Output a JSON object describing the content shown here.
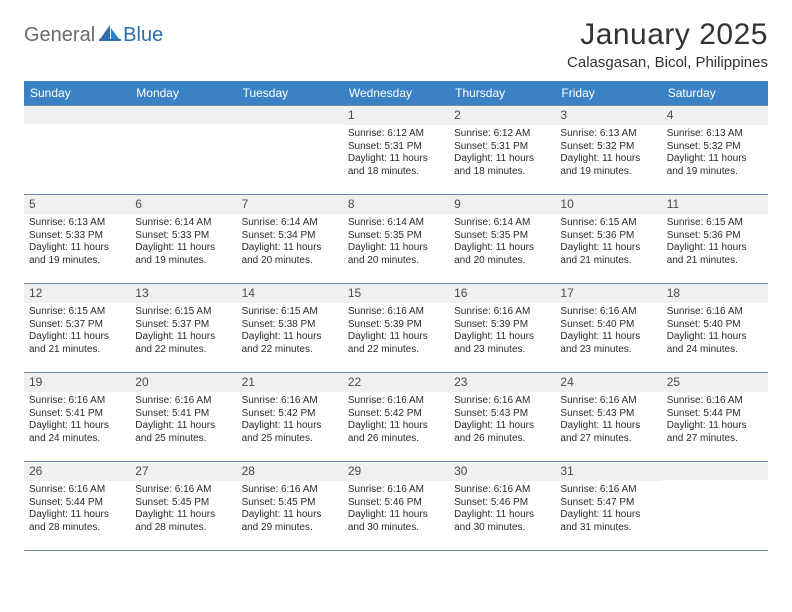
{
  "logo": {
    "general": "General",
    "blue": "Blue"
  },
  "title": "January 2025",
  "location": "Calasgasan, Bicol, Philippines",
  "colors": {
    "header_bg": "#3a82c4",
    "header_text": "#ffffff",
    "daynum_bg": "#eef0f2",
    "border": "#6d8aa8",
    "logo_gray": "#6b6b6b",
    "logo_blue": "#2b6fb0"
  },
  "weekdays": [
    "Sunday",
    "Monday",
    "Tuesday",
    "Wednesday",
    "Thursday",
    "Friday",
    "Saturday"
  ],
  "weeks": [
    [
      null,
      null,
      null,
      {
        "d": "1",
        "sr": "6:12 AM",
        "ss": "5:31 PM",
        "dl": "11 hours and 18 minutes."
      },
      {
        "d": "2",
        "sr": "6:12 AM",
        "ss": "5:31 PM",
        "dl": "11 hours and 18 minutes."
      },
      {
        "d": "3",
        "sr": "6:13 AM",
        "ss": "5:32 PM",
        "dl": "11 hours and 19 minutes."
      },
      {
        "d": "4",
        "sr": "6:13 AM",
        "ss": "5:32 PM",
        "dl": "11 hours and 19 minutes."
      }
    ],
    [
      {
        "d": "5",
        "sr": "6:13 AM",
        "ss": "5:33 PM",
        "dl": "11 hours and 19 minutes."
      },
      {
        "d": "6",
        "sr": "6:14 AM",
        "ss": "5:33 PM",
        "dl": "11 hours and 19 minutes."
      },
      {
        "d": "7",
        "sr": "6:14 AM",
        "ss": "5:34 PM",
        "dl": "11 hours and 20 minutes."
      },
      {
        "d": "8",
        "sr": "6:14 AM",
        "ss": "5:35 PM",
        "dl": "11 hours and 20 minutes."
      },
      {
        "d": "9",
        "sr": "6:14 AM",
        "ss": "5:35 PM",
        "dl": "11 hours and 20 minutes."
      },
      {
        "d": "10",
        "sr": "6:15 AM",
        "ss": "5:36 PM",
        "dl": "11 hours and 21 minutes."
      },
      {
        "d": "11",
        "sr": "6:15 AM",
        "ss": "5:36 PM",
        "dl": "11 hours and 21 minutes."
      }
    ],
    [
      {
        "d": "12",
        "sr": "6:15 AM",
        "ss": "5:37 PM",
        "dl": "11 hours and 21 minutes."
      },
      {
        "d": "13",
        "sr": "6:15 AM",
        "ss": "5:37 PM",
        "dl": "11 hours and 22 minutes."
      },
      {
        "d": "14",
        "sr": "6:15 AM",
        "ss": "5:38 PM",
        "dl": "11 hours and 22 minutes."
      },
      {
        "d": "15",
        "sr": "6:16 AM",
        "ss": "5:39 PM",
        "dl": "11 hours and 22 minutes."
      },
      {
        "d": "16",
        "sr": "6:16 AM",
        "ss": "5:39 PM",
        "dl": "11 hours and 23 minutes."
      },
      {
        "d": "17",
        "sr": "6:16 AM",
        "ss": "5:40 PM",
        "dl": "11 hours and 23 minutes."
      },
      {
        "d": "18",
        "sr": "6:16 AM",
        "ss": "5:40 PM",
        "dl": "11 hours and 24 minutes."
      }
    ],
    [
      {
        "d": "19",
        "sr": "6:16 AM",
        "ss": "5:41 PM",
        "dl": "11 hours and 24 minutes."
      },
      {
        "d": "20",
        "sr": "6:16 AM",
        "ss": "5:41 PM",
        "dl": "11 hours and 25 minutes."
      },
      {
        "d": "21",
        "sr": "6:16 AM",
        "ss": "5:42 PM",
        "dl": "11 hours and 25 minutes."
      },
      {
        "d": "22",
        "sr": "6:16 AM",
        "ss": "5:42 PM",
        "dl": "11 hours and 26 minutes."
      },
      {
        "d": "23",
        "sr": "6:16 AM",
        "ss": "5:43 PM",
        "dl": "11 hours and 26 minutes."
      },
      {
        "d": "24",
        "sr": "6:16 AM",
        "ss": "5:43 PM",
        "dl": "11 hours and 27 minutes."
      },
      {
        "d": "25",
        "sr": "6:16 AM",
        "ss": "5:44 PM",
        "dl": "11 hours and 27 minutes."
      }
    ],
    [
      {
        "d": "26",
        "sr": "6:16 AM",
        "ss": "5:44 PM",
        "dl": "11 hours and 28 minutes."
      },
      {
        "d": "27",
        "sr": "6:16 AM",
        "ss": "5:45 PM",
        "dl": "11 hours and 28 minutes."
      },
      {
        "d": "28",
        "sr": "6:16 AM",
        "ss": "5:45 PM",
        "dl": "11 hours and 29 minutes."
      },
      {
        "d": "29",
        "sr": "6:16 AM",
        "ss": "5:46 PM",
        "dl": "11 hours and 30 minutes."
      },
      {
        "d": "30",
        "sr": "6:16 AM",
        "ss": "5:46 PM",
        "dl": "11 hours and 30 minutes."
      },
      {
        "d": "31",
        "sr": "6:16 AM",
        "ss": "5:47 PM",
        "dl": "11 hours and 31 minutes."
      },
      null
    ]
  ],
  "labels": {
    "sunrise": "Sunrise:",
    "sunset": "Sunset:",
    "daylight": "Daylight:"
  }
}
